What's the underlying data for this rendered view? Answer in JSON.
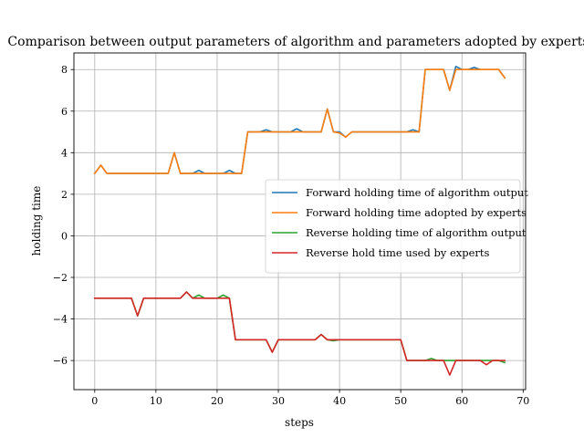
{
  "chart_data": {
    "type": "line",
    "title": "Comparison between output parameters of algorithm and parameters adopted by experts",
    "xlabel": "steps",
    "ylabel": "holding time",
    "xlim": [
      -3.4,
      70.4
    ],
    "ylim": [
      -7.4,
      8.8
    ],
    "xticks": [
      0,
      10,
      20,
      30,
      40,
      50,
      60,
      70
    ],
    "yticks": [
      -6,
      -4,
      -2,
      0,
      2,
      4,
      6,
      8
    ],
    "grid": true,
    "legend_position": "center-right",
    "x": [
      0,
      1,
      2,
      3,
      4,
      5,
      6,
      7,
      8,
      9,
      10,
      11,
      12,
      13,
      14,
      15,
      16,
      17,
      18,
      19,
      20,
      21,
      22,
      23,
      24,
      25,
      26,
      27,
      28,
      29,
      30,
      31,
      32,
      33,
      34,
      35,
      36,
      37,
      38,
      39,
      40,
      41,
      42,
      43,
      44,
      45,
      46,
      47,
      48,
      49,
      50,
      51,
      52,
      53,
      54,
      55,
      56,
      57,
      58,
      59,
      60,
      61,
      62,
      63,
      64,
      65,
      66,
      67
    ],
    "series": [
      {
        "name": "Forward holding time of algorithm output",
        "color": "#1f77b4",
        "values": [
          3.0,
          3.4,
          3.0,
          3.0,
          3.0,
          3.0,
          3.0,
          3.0,
          3.0,
          3.0,
          3.0,
          3.0,
          3.0,
          4.0,
          3.0,
          3.0,
          3.0,
          3.15,
          3.0,
          3.0,
          3.0,
          3.0,
          3.15,
          3.0,
          3.0,
          5.0,
          5.0,
          5.0,
          5.1,
          5.0,
          5.0,
          5.0,
          5.0,
          5.15,
          5.0,
          5.0,
          5.0,
          5.0,
          6.1,
          5.0,
          5.0,
          4.75,
          5.0,
          5.0,
          5.0,
          5.0,
          5.0,
          5.0,
          5.0,
          5.0,
          5.0,
          5.0,
          5.1,
          5.0,
          8.0,
          8.0,
          8.0,
          8.0,
          7.0,
          8.15,
          8.0,
          8.0,
          8.1,
          8.0,
          8.0,
          8.0,
          8.0,
          7.6
        ]
      },
      {
        "name": "Forward holding time adopted by experts",
        "color": "#ff7f0e",
        "values": [
          3.0,
          3.4,
          3.0,
          3.0,
          3.0,
          3.0,
          3.0,
          3.0,
          3.0,
          3.0,
          3.0,
          3.0,
          3.0,
          4.0,
          3.0,
          3.0,
          3.0,
          3.0,
          3.0,
          3.0,
          3.0,
          3.0,
          3.0,
          3.0,
          3.0,
          5.0,
          5.0,
          5.0,
          5.0,
          5.0,
          5.0,
          5.0,
          5.0,
          5.0,
          5.0,
          5.0,
          5.0,
          5.0,
          6.1,
          5.0,
          4.95,
          4.75,
          5.0,
          5.0,
          5.0,
          5.0,
          5.0,
          5.0,
          5.0,
          5.0,
          5.0,
          5.0,
          5.0,
          5.0,
          8.0,
          8.0,
          8.0,
          8.0,
          7.0,
          8.0,
          8.0,
          8.0,
          8.0,
          8.0,
          8.0,
          8.0,
          8.0,
          7.6
        ]
      },
      {
        "name": "Reverse holding time of algorithm output",
        "color": "#2ca02c",
        "values": [
          -3.0,
          -3.0,
          -3.0,
          -3.0,
          -3.0,
          -3.0,
          -3.0,
          -3.85,
          -3.0,
          -3.0,
          -3.0,
          -3.0,
          -3.0,
          -3.0,
          -3.0,
          -2.7,
          -3.0,
          -2.85,
          -3.0,
          -3.0,
          -3.0,
          -2.85,
          -3.0,
          -5.0,
          -5.0,
          -5.0,
          -5.0,
          -5.0,
          -5.0,
          -5.6,
          -5.0,
          -5.0,
          -5.0,
          -5.0,
          -5.0,
          -5.0,
          -5.0,
          -4.75,
          -5.0,
          -5.05,
          -5.0,
          -5.0,
          -5.0,
          -5.0,
          -5.0,
          -5.0,
          -5.0,
          -5.0,
          -5.0,
          -5.0,
          -5.0,
          -6.0,
          -6.0,
          -6.0,
          -6.0,
          -5.9,
          -6.0,
          -6.0,
          -6.0,
          -6.0,
          -6.0,
          -6.0,
          -6.0,
          -6.0,
          -6.0,
          -6.0,
          -6.0,
          -6.1
        ]
      },
      {
        "name": "Reverse hold time used by experts",
        "color": "#d62728",
        "values": [
          -3.0,
          -3.0,
          -3.0,
          -3.0,
          -3.0,
          -3.0,
          -3.0,
          -3.85,
          -3.0,
          -3.0,
          -3.0,
          -3.0,
          -3.0,
          -3.0,
          -3.0,
          -2.7,
          -3.0,
          -3.0,
          -3.0,
          -3.0,
          -3.0,
          -3.0,
          -3.0,
          -5.0,
          -5.0,
          -5.0,
          -5.0,
          -5.0,
          -5.0,
          -5.6,
          -5.0,
          -5.0,
          -5.0,
          -5.0,
          -5.0,
          -5.0,
          -5.0,
          -4.75,
          -5.0,
          -5.0,
          -5.0,
          -5.0,
          -5.0,
          -5.0,
          -5.0,
          -5.0,
          -5.0,
          -5.0,
          -5.0,
          -5.0,
          -5.0,
          -6.0,
          -6.0,
          -6.0,
          -6.0,
          -6.0,
          -6.0,
          -6.0,
          -6.7,
          -6.0,
          -6.0,
          -6.0,
          -6.0,
          -6.0,
          -6.2,
          -6.0,
          -6.0,
          -6.0
        ]
      }
    ]
  }
}
